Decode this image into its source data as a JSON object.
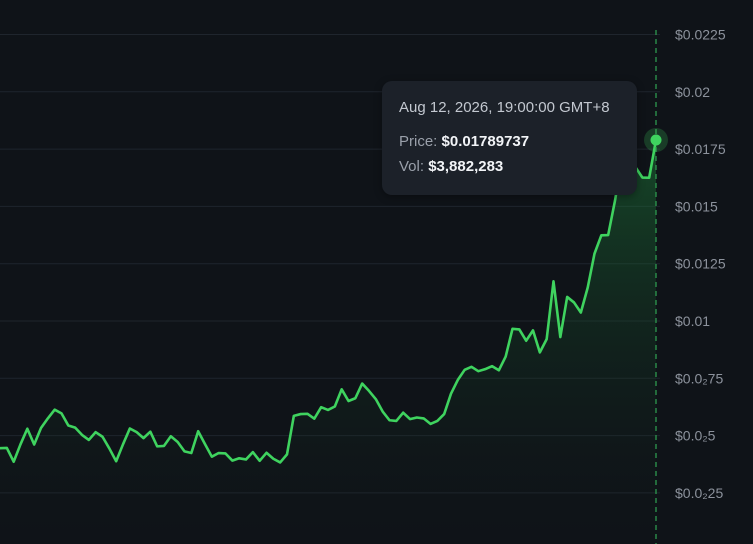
{
  "chart_data": {
    "type": "area",
    "y_axis_position": "right",
    "ylim": [
      0,
      0.0225
    ],
    "grid": true,
    "y_ticks": [
      {
        "value": 0.0225,
        "label": "$0.0225"
      },
      {
        "value": 0.02,
        "label": "$0.02"
      },
      {
        "value": 0.0175,
        "label": "$0.0175"
      },
      {
        "value": 0.015,
        "label": "$0.015"
      },
      {
        "value": 0.0125,
        "label": "$0.0125"
      },
      {
        "value": 0.01,
        "label": "$0.01"
      },
      {
        "value": 0.0075,
        "label": "$0.0₂75"
      },
      {
        "value": 0.005,
        "label": "$0.0₂5"
      },
      {
        "value": 0.0025,
        "label": "$0.0₂25"
      }
    ],
    "line_color": "#3fd35f",
    "values": [
      0.00445,
      0.00446,
      0.00386,
      0.00462,
      0.0053,
      0.00461,
      0.00533,
      0.00575,
      0.00613,
      0.00597,
      0.00544,
      0.00535,
      0.00503,
      0.00481,
      0.00515,
      0.00495,
      0.00444,
      0.00388,
      0.00462,
      0.00531,
      0.00515,
      0.00489,
      0.00517,
      0.00453,
      0.00455,
      0.00497,
      0.00472,
      0.00431,
      0.00424,
      0.00519,
      0.00463,
      0.00408,
      0.00424,
      0.00422,
      0.00391,
      0.00401,
      0.00396,
      0.00428,
      0.0039,
      0.00425,
      0.00399,
      0.00383,
      0.00418,
      0.00586,
      0.00594,
      0.00595,
      0.00574,
      0.00624,
      0.00612,
      0.00627,
      0.00702,
      0.00651,
      0.00663,
      0.00727,
      0.00695,
      0.00659,
      0.00605,
      0.00567,
      0.00564,
      0.006,
      0.00572,
      0.00579,
      0.00575,
      0.00551,
      0.00564,
      0.00594,
      0.00683,
      0.00743,
      0.00787,
      0.008,
      0.00781,
      0.0079,
      0.00803,
      0.00785,
      0.00845,
      0.00966,
      0.00963,
      0.00914,
      0.00959,
      0.00863,
      0.00921,
      0.01173,
      0.0093,
      0.01105,
      0.01081,
      0.01037,
      0.01145,
      0.01294,
      0.01374,
      0.01375,
      0.01525,
      0.01703,
      0.01771,
      0.01671,
      0.01626,
      0.01625,
      0.01789737
    ],
    "highlight": {
      "timestamp": "Aug 12, 2026, 19:00:00 GMT+8",
      "price": "$0.01789737",
      "volume": "$3,882,283"
    }
  },
  "tooltip": {
    "timestamp": "Aug 12, 2026, 19:00:00 GMT+8",
    "price_label": "Price:",
    "price_value": "$0.01789737",
    "vol_label": "Vol:",
    "vol_value": "$3,882,283"
  },
  "colors": {
    "background": "#0f1318",
    "line": "#3fd35f",
    "grid": "#1f252d",
    "crosshair": "#2e9a4f"
  }
}
